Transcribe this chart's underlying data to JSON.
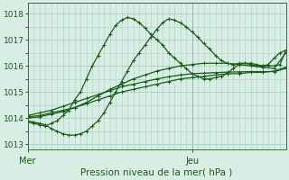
{
  "xlabel": "Pression niveau de la mer( hPa )",
  "ylim": [
    1012.8,
    1018.4
  ],
  "xlim": [
    0,
    44
  ],
  "yticks": [
    1013,
    1014,
    1015,
    1016,
    1017,
    1018
  ],
  "xtick_positions": [
    0,
    28
  ],
  "xtick_labels": [
    "Mer",
    "Jeu"
  ],
  "vline_x": 28,
  "bg_color": "#d8ede4",
  "grid_color": "#aacfbf",
  "line_color": "#1a5c1a",
  "marker": "+",
  "marker_size": 3,
  "line_width": 0.9,
  "series": [
    {
      "x": [
        0,
        1,
        2,
        3,
        4,
        5,
        6,
        7,
        8,
        9,
        10,
        11,
        12,
        13,
        14,
        15,
        16,
        17,
        18,
        19,
        20,
        21,
        22,
        23,
        24,
        25,
        26,
        27,
        28,
        29,
        30,
        31,
        32,
        33,
        34,
        35,
        36,
        37,
        38,
        39,
        40,
        41,
        42,
        43,
        44
      ],
      "y": [
        1013.85,
        1013.8,
        1013.75,
        1013.7,
        1013.8,
        1013.9,
        1014.1,
        1014.3,
        1014.7,
        1015.0,
        1015.5,
        1016.0,
        1016.4,
        1016.8,
        1017.2,
        1017.55,
        1017.75,
        1017.85,
        1017.8,
        1017.65,
        1017.45,
        1017.2,
        1017.0,
        1016.8,
        1016.5,
        1016.3,
        1016.1,
        1015.9,
        1015.7,
        1015.6,
        1015.5,
        1015.5,
        1015.55,
        1015.6,
        1015.7,
        1015.9,
        1016.05,
        1016.1,
        1016.1,
        1016.05,
        1016.0,
        1016.0,
        1016.0,
        1016.05,
        1016.6
      ]
    },
    {
      "x": [
        0,
        1,
        2,
        3,
        4,
        5,
        6,
        7,
        8,
        9,
        10,
        11,
        12,
        13,
        14,
        15,
        16,
        17,
        18,
        19,
        20,
        21,
        22,
        23,
        24,
        25,
        26,
        27,
        28,
        29,
        30,
        31,
        32,
        33,
        34,
        35,
        36,
        37,
        38,
        39,
        40,
        41,
        42,
        43,
        44
      ],
      "y": [
        1013.9,
        1013.85,
        1013.8,
        1013.75,
        1013.6,
        1013.5,
        1013.4,
        1013.35,
        1013.35,
        1013.4,
        1013.5,
        1013.7,
        1013.9,
        1014.2,
        1014.6,
        1015.0,
        1015.4,
        1015.8,
        1016.2,
        1016.5,
        1016.8,
        1017.1,
        1017.4,
        1017.65,
        1017.8,
        1017.75,
        1017.65,
        1017.5,
        1017.3,
        1017.1,
        1016.85,
        1016.65,
        1016.4,
        1016.2,
        1016.1,
        1016.05,
        1016.1,
        1016.1,
        1016.05,
        1016.0,
        1016.0,
        1016.05,
        1016.3,
        1016.5,
        1016.6
      ]
    },
    {
      "x": [
        0,
        2,
        4,
        6,
        8,
        10,
        12,
        14,
        16,
        18,
        20,
        22,
        24,
        26,
        28,
        30,
        32,
        34,
        36,
        38,
        40,
        42,
        44
      ],
      "y": [
        1014.0,
        1014.05,
        1014.15,
        1014.25,
        1014.4,
        1014.6,
        1014.85,
        1015.1,
        1015.3,
        1015.5,
        1015.65,
        1015.8,
        1015.9,
        1016.0,
        1016.05,
        1016.1,
        1016.1,
        1016.1,
        1016.05,
        1016.0,
        1015.95,
        1015.9,
        1016.5
      ]
    },
    {
      "x": [
        0,
        2,
        4,
        6,
        8,
        10,
        12,
        14,
        16,
        18,
        20,
        22,
        24,
        26,
        28,
        30,
        32,
        34,
        36,
        38,
        40,
        42,
        44
      ],
      "y": [
        1014.05,
        1014.1,
        1014.2,
        1014.3,
        1014.4,
        1014.55,
        1014.7,
        1014.85,
        1015.0,
        1015.1,
        1015.2,
        1015.3,
        1015.4,
        1015.5,
        1015.55,
        1015.6,
        1015.65,
        1015.7,
        1015.7,
        1015.75,
        1015.75,
        1015.8,
        1015.95
      ]
    },
    {
      "x": [
        0,
        2,
        4,
        6,
        8,
        10,
        12,
        14,
        16,
        18,
        20,
        22,
        24,
        26,
        28,
        30,
        32,
        34,
        36,
        38,
        40,
        42,
        44
      ],
      "y": [
        1014.1,
        1014.2,
        1014.3,
        1014.45,
        1014.6,
        1014.75,
        1014.9,
        1015.05,
        1015.2,
        1015.3,
        1015.4,
        1015.5,
        1015.58,
        1015.65,
        1015.7,
        1015.72,
        1015.74,
        1015.76,
        1015.77,
        1015.78,
        1015.78,
        1015.78,
        1015.9
      ]
    }
  ]
}
